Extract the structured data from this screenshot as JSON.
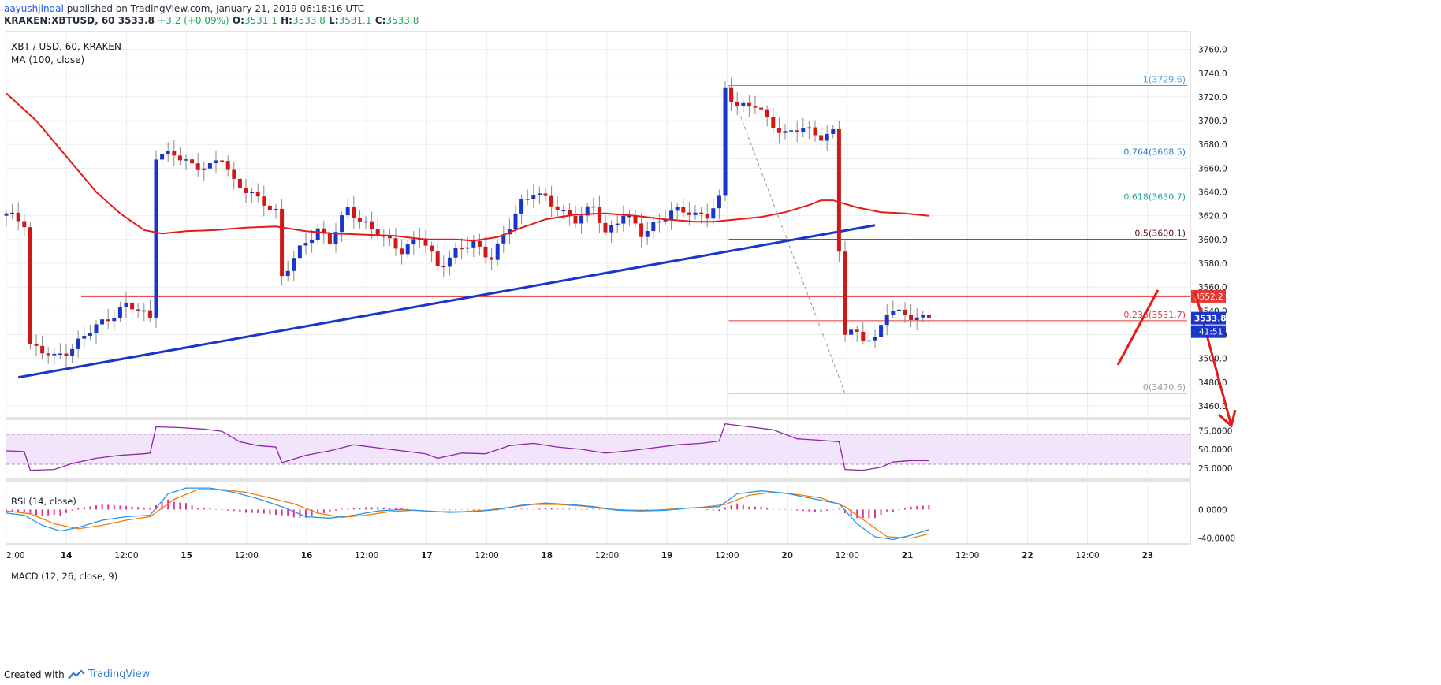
{
  "header": {
    "author": "aayushjindal",
    "published_text": "published on TradingView.com, January 21, 2019 06:18:16 UTC",
    "symbol": "KRAKEN:XBTUSD, 60",
    "last": "3533.8",
    "change": "+3.2 (+0.09%)",
    "o_label": "O:",
    "o": "3531.1",
    "h_label": "H:",
    "h": "3533.8",
    "l_label": "L:",
    "l": "3531.1",
    "c_label": "C:",
    "c": "3533.8"
  },
  "footer": {
    "created_with": "Created with",
    "brand": "TradingView"
  },
  "chart_data": [
    {
      "type": "candlestick",
      "title": "XBT / USD, 60, KRAKEN",
      "indicator_label": "MA (100, close)",
      "ylim": [
        3450,
        3775
      ],
      "y_ticks": [
        3460,
        3480,
        3500,
        3520,
        3540,
        3560,
        3580,
        3600,
        3620,
        3640,
        3660,
        3680,
        3700,
        3720,
        3740,
        3760
      ],
      "x_ticks": [
        "2:00",
        "14",
        "12:00",
        "15",
        "12:00",
        "16",
        "12:00",
        "17",
        "12:00",
        "18",
        "12:00",
        "19",
        "12:00",
        "20",
        "12:00",
        "21",
        "12:00",
        "22",
        "12:00",
        "23"
      ],
      "price_path": [
        [
          0,
          3620
        ],
        [
          3,
          3615
        ],
        [
          4,
          3512
        ],
        [
          6,
          3505
        ],
        [
          8,
          3500
        ],
        [
          11,
          3510
        ],
        [
          14,
          3522
        ],
        [
          17,
          3535
        ],
        [
          20,
          3544
        ],
        [
          23,
          3538
        ],
        [
          24,
          3536
        ],
        [
          25,
          3672
        ],
        [
          28,
          3670
        ],
        [
          31,
          3664
        ],
        [
          34,
          3660
        ],
        [
          36,
          3668
        ],
        [
          38,
          3650
        ],
        [
          40,
          3642
        ],
        [
          42,
          3632
        ],
        [
          45,
          3625
        ],
        [
          46,
          3570
        ],
        [
          49,
          3590
        ],
        [
          52,
          3610
        ],
        [
          54,
          3598
        ],
        [
          57,
          3625
        ],
        [
          60,
          3614
        ],
        [
          63,
          3600
        ],
        [
          66,
          3592
        ],
        [
          69,
          3602
        ],
        [
          72,
          3578
        ],
        [
          75,
          3590
        ],
        [
          78,
          3596
        ],
        [
          81,
          3586
        ],
        [
          84,
          3610
        ],
        [
          86,
          3632
        ],
        [
          88,
          3642
        ],
        [
          91,
          3628
        ],
        [
          95,
          3618
        ],
        [
          98,
          3626
        ],
        [
          100,
          3606
        ],
        [
          103,
          3622
        ],
        [
          106,
          3604
        ],
        [
          108,
          3614
        ],
        [
          111,
          3622
        ],
        [
          114,
          3624
        ],
        [
          117,
          3620
        ],
        [
          119,
          3632
        ],
        [
          120,
          3726
        ],
        [
          122,
          3714
        ],
        [
          125,
          3712
        ],
        [
          127,
          3700
        ],
        [
          130,
          3690
        ],
        [
          133,
          3692
        ],
        [
          136,
          3688
        ],
        [
          138,
          3690
        ],
        [
          139,
          3590
        ],
        [
          140,
          3520
        ],
        [
          142,
          3522
        ],
        [
          145,
          3515
        ],
        [
          147,
          3538
        ],
        [
          150,
          3540
        ],
        [
          152,
          3532
        ],
        [
          154,
          3533.8
        ]
      ],
      "ma100": [
        [
          0,
          3723
        ],
        [
          5,
          3700
        ],
        [
          10,
          3670
        ],
        [
          15,
          3640
        ],
        [
          19,
          3622
        ],
        [
          23,
          3608
        ],
        [
          26,
          3605
        ],
        [
          30,
          3607
        ],
        [
          35,
          3608
        ],
        [
          40,
          3610
        ],
        [
          45,
          3611
        ],
        [
          50,
          3607
        ],
        [
          55,
          3605
        ],
        [
          60,
          3604
        ],
        [
          65,
          3603
        ],
        [
          70,
          3600
        ],
        [
          75,
          3600
        ],
        [
          78,
          3599
        ],
        [
          82,
          3602
        ],
        [
          86,
          3610
        ],
        [
          90,
          3617
        ],
        [
          95,
          3621
        ],
        [
          100,
          3622
        ],
        [
          105,
          3620
        ],
        [
          110,
          3617
        ],
        [
          115,
          3615
        ],
        [
          118,
          3615
        ],
        [
          122,
          3617
        ],
        [
          126,
          3619
        ],
        [
          130,
          3623
        ],
        [
          134,
          3629
        ],
        [
          136,
          3633
        ],
        [
          138,
          3633
        ],
        [
          142,
          3627
        ],
        [
          146,
          3623
        ],
        [
          150,
          3622
        ],
        [
          154,
          3620
        ]
      ],
      "trendline": [
        [
          2,
          3484
        ],
        [
          145,
          3612
        ]
      ],
      "horizontal_levels": [
        {
          "value": 3552.2,
          "label": "3552.2",
          "color": "#e53935"
        }
      ],
      "last_price": {
        "value": 3533.8,
        "label": "3533.8",
        "countdown": "41:51"
      },
      "fibonacci": [
        {
          "ratio": "1",
          "value": 3729.6,
          "color": "#4d9ede"
        },
        {
          "ratio": "0.764",
          "value": 3668.5,
          "color": "#2e7bcf"
        },
        {
          "ratio": "0.618",
          "value": 3630.7,
          "color": "#26a69a"
        },
        {
          "ratio": "0.5",
          "value": 3600.1,
          "color": "#6b0f1a"
        },
        {
          "ratio": "0.236",
          "value": 3531.7,
          "color": "#e53935"
        },
        {
          "ratio": "0",
          "value": 3470.6,
          "color": "#9e9e9e"
        }
      ]
    },
    {
      "type": "line",
      "title": "RSI (14, close)",
      "ylim": [
        10,
        90
      ],
      "y_ticks": [
        25,
        50,
        75
      ],
      "band": [
        30,
        70
      ],
      "values": [
        [
          0,
          48
        ],
        [
          3,
          47
        ],
        [
          4,
          22
        ],
        [
          8,
          23
        ],
        [
          11,
          31
        ],
        [
          15,
          38
        ],
        [
          19,
          42
        ],
        [
          23,
          44
        ],
        [
          24,
          45
        ],
        [
          25,
          80
        ],
        [
          29,
          79
        ],
        [
          33,
          77
        ],
        [
          36,
          74
        ],
        [
          39,
          60
        ],
        [
          42,
          55
        ],
        [
          45,
          53
        ],
        [
          46,
          32
        ],
        [
          50,
          42
        ],
        [
          54,
          48
        ],
        [
          58,
          56
        ],
        [
          62,
          52
        ],
        [
          66,
          48
        ],
        [
          70,
          44
        ],
        [
          72,
          38
        ],
        [
          76,
          45
        ],
        [
          80,
          44
        ],
        [
          84,
          55
        ],
        [
          88,
          58
        ],
        [
          92,
          53
        ],
        [
          96,
          50
        ],
        [
          100,
          45
        ],
        [
          104,
          48
        ],
        [
          108,
          52
        ],
        [
          112,
          56
        ],
        [
          116,
          58
        ],
        [
          119,
          61
        ],
        [
          120,
          84
        ],
        [
          124,
          80
        ],
        [
          128,
          76
        ],
        [
          132,
          64
        ],
        [
          136,
          62
        ],
        [
          139,
          60
        ],
        [
          140,
          23
        ],
        [
          143,
          22
        ],
        [
          146,
          26
        ],
        [
          148,
          33
        ],
        [
          151,
          35
        ],
        [
          154,
          35
        ]
      ]
    },
    {
      "type": "bar-line",
      "title": "MACD (12, 26, close, 9)",
      "ylim": [
        -48,
        40
      ],
      "y_ticks": [
        -40,
        0
      ],
      "macd": [
        [
          0,
          -5
        ],
        [
          3,
          -8
        ],
        [
          6,
          -22
        ],
        [
          9,
          -30
        ],
        [
          12,
          -25
        ],
        [
          16,
          -15
        ],
        [
          20,
          -10
        ],
        [
          24,
          -8
        ],
        [
          27,
          22
        ],
        [
          30,
          30
        ],
        [
          34,
          30
        ],
        [
          38,
          24
        ],
        [
          42,
          15
        ],
        [
          46,
          4
        ],
        [
          50,
          -10
        ],
        [
          54,
          -12
        ],
        [
          58,
          -8
        ],
        [
          62,
          -2
        ],
        [
          66,
          0
        ],
        [
          70,
          -2
        ],
        [
          74,
          -4
        ],
        [
          78,
          -3
        ],
        [
          82,
          0
        ],
        [
          86,
          6
        ],
        [
          90,
          9
        ],
        [
          94,
          7
        ],
        [
          98,
          4
        ],
        [
          102,
          -1
        ],
        [
          106,
          -2
        ],
        [
          110,
          -1
        ],
        [
          114,
          2
        ],
        [
          119,
          4
        ],
        [
          122,
          22
        ],
        [
          126,
          26
        ],
        [
          130,
          23
        ],
        [
          134,
          16
        ],
        [
          139,
          8
        ],
        [
          142,
          -20
        ],
        [
          145,
          -38
        ],
        [
          148,
          -42
        ],
        [
          151,
          -36
        ],
        [
          154,
          -28
        ]
      ],
      "signal": [
        [
          0,
          -2
        ],
        [
          4,
          -6
        ],
        [
          8,
          -20
        ],
        [
          12,
          -27
        ],
        [
          16,
          -22
        ],
        [
          20,
          -15
        ],
        [
          24,
          -10
        ],
        [
          28,
          14
        ],
        [
          32,
          28
        ],
        [
          36,
          28
        ],
        [
          40,
          24
        ],
        [
          44,
          16
        ],
        [
          48,
          8
        ],
        [
          52,
          -5
        ],
        [
          56,
          -11
        ],
        [
          60,
          -8
        ],
        [
          64,
          -3
        ],
        [
          68,
          -1
        ],
        [
          72,
          -3
        ],
        [
          76,
          -3
        ],
        [
          80,
          -1
        ],
        [
          84,
          3
        ],
        [
          88,
          7
        ],
        [
          92,
          7
        ],
        [
          96,
          5
        ],
        [
          100,
          1
        ],
        [
          104,
          -1
        ],
        [
          108,
          -1
        ],
        [
          112,
          1
        ],
        [
          116,
          3
        ],
        [
          120,
          7
        ],
        [
          124,
          20
        ],
        [
          128,
          24
        ],
        [
          132,
          21
        ],
        [
          136,
          16
        ],
        [
          140,
          4
        ],
        [
          143,
          -14
        ],
        [
          147,
          -38
        ],
        [
          151,
          -40
        ],
        [
          154,
          -34
        ]
      ]
    }
  ]
}
